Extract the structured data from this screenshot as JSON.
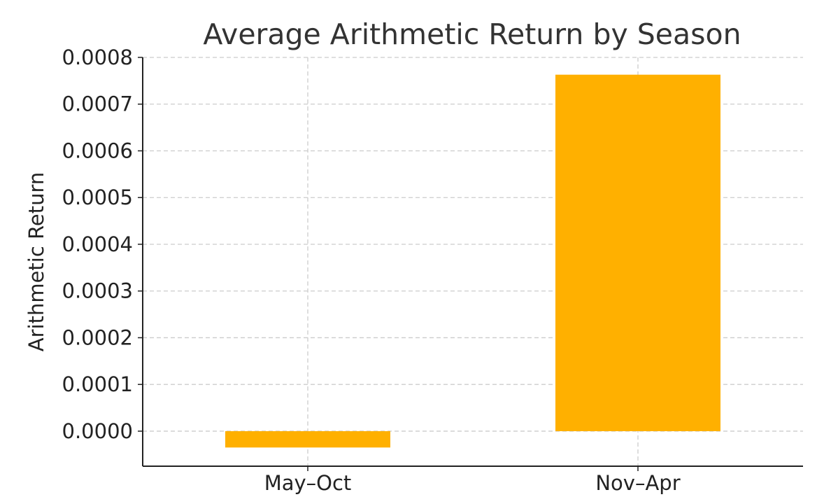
{
  "chart_data": {
    "type": "bar",
    "title": "Average Arithmetic Return by Season",
    "xlabel": "",
    "ylabel": "Arithmetic Return",
    "categories": [
      "May–Oct",
      "Nov–Apr"
    ],
    "values": [
      -3.5e-05,
      0.000763
    ],
    "ylim": [
      -7.5e-05,
      0.0008
    ],
    "yticks": [
      0.0,
      0.0001,
      0.0002,
      0.0003,
      0.0004,
      0.0005,
      0.0006,
      0.0007,
      0.0008
    ],
    "ytick_labels": [
      "0.0000",
      "0.0001",
      "0.0002",
      "0.0003",
      "0.0004",
      "0.0005",
      "0.0006",
      "0.0007",
      "0.0008"
    ],
    "grid": true,
    "bar_color": "#FFB000"
  }
}
